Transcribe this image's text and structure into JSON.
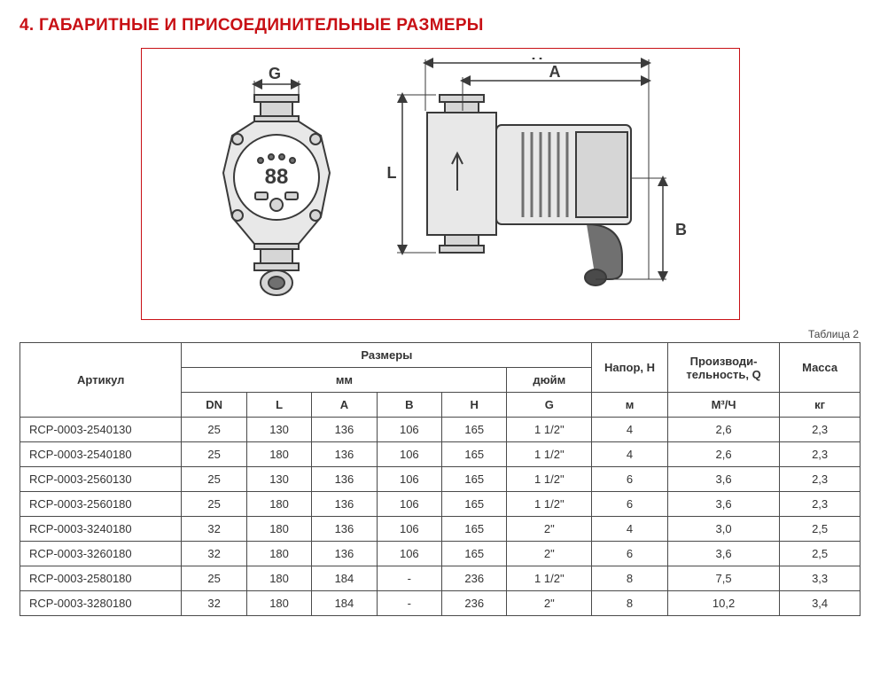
{
  "section_title": "4. ГАБАРИТНЫЕ И ПРИСОЕДИНИТЕЛЬНЫЕ РАЗМЕРЫ",
  "table_caption": "Таблица 2",
  "diagram": {
    "labels": {
      "G": "G",
      "H": "H",
      "A": "A",
      "L": "L",
      "B": "B"
    },
    "pump_display": "88",
    "stroke_color": "#3a3a3a",
    "fill_light": "#f2f2f2",
    "fill_mid": "#d6d6d6",
    "fill_dark": "#707070",
    "label_fontsize": 18
  },
  "table": {
    "headers": {
      "articul": "Артикул",
      "dimensions": "Размеры",
      "mm": "мм",
      "inch": "дюйм",
      "pressure": "Напор, H",
      "performance": "Производи- тельность, Q",
      "mass": "Масса",
      "DN": "DN",
      "L": "L",
      "A": "A",
      "B": "B",
      "H": "H",
      "G": "G",
      "m": "м",
      "m3h": "М³/Ч",
      "kg": "кг"
    },
    "header_border_color": "#4a4a4a",
    "cell_font_size": 13,
    "rows": [
      {
        "articul": "RCP-0003-2540130",
        "DN": "25",
        "L": "130",
        "A": "136",
        "B": "106",
        "H": "165",
        "G": "1 1/2\"",
        "pressure": "4",
        "perf": "2,6",
        "mass": "2,3"
      },
      {
        "articul": "RCP-0003-2540180",
        "DN": "25",
        "L": "180",
        "A": "136",
        "B": "106",
        "H": "165",
        "G": "1 1/2\"",
        "pressure": "4",
        "perf": "2,6",
        "mass": "2,3"
      },
      {
        "articul": "RCP-0003-2560130",
        "DN": "25",
        "L": "130",
        "A": "136",
        "B": "106",
        "H": "165",
        "G": "1 1/2\"",
        "pressure": "6",
        "perf": "3,6",
        "mass": "2,3"
      },
      {
        "articul": "RCP-0003-2560180",
        "DN": "25",
        "L": "180",
        "A": "136",
        "B": "106",
        "H": "165",
        "G": "1 1/2\"",
        "pressure": "6",
        "perf": "3,6",
        "mass": "2,3"
      },
      {
        "articul": "RCP-0003-3240180",
        "DN": "32",
        "L": "180",
        "A": "136",
        "B": "106",
        "H": "165",
        "G": "2\"",
        "pressure": "4",
        "perf": "3,0",
        "mass": "2,5"
      },
      {
        "articul": "RCP-0003-3260180",
        "DN": "32",
        "L": "180",
        "A": "136",
        "B": "106",
        "H": "165",
        "G": "2\"",
        "pressure": "6",
        "perf": "3,6",
        "mass": "2,5"
      },
      {
        "articul": "RCP-0003-2580180",
        "DN": "25",
        "L": "180",
        "A": "184",
        "B": "-",
        "H": "236",
        "G": "1 1/2\"",
        "pressure": "8",
        "perf": "7,5",
        "mass": "3,3"
      },
      {
        "articul": "RCP-0003-3280180",
        "DN": "32",
        "L": "180",
        "A": "184",
        "B": "-",
        "H": "236",
        "G": "2\"",
        "pressure": "8",
        "perf": "10,2",
        "mass": "3,4"
      }
    ]
  }
}
